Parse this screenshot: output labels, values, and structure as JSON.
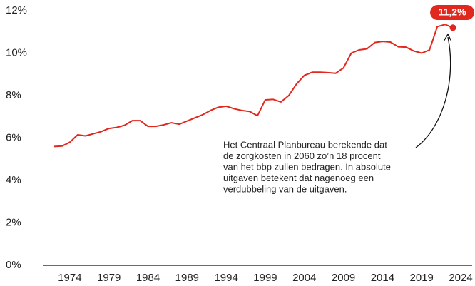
{
  "chart_data": {
    "type": "line",
    "x": [
      1972,
      1973,
      1974,
      1975,
      1976,
      1977,
      1978,
      1979,
      1980,
      1981,
      1982,
      1983,
      1984,
      1985,
      1986,
      1987,
      1988,
      1989,
      1990,
      1991,
      1992,
      1993,
      1994,
      1995,
      1996,
      1997,
      1998,
      1999,
      2000,
      2001,
      2002,
      2003,
      2004,
      2005,
      2006,
      2007,
      2008,
      2009,
      2010,
      2011,
      2012,
      2013,
      2014,
      2015,
      2016,
      2017,
      2018,
      2019,
      2020,
      2021,
      2022
    ],
    "series": [
      {
        "color": "#e0281e",
        "values": [
          5.6,
          5.62,
          5.8,
          6.15,
          6.1,
          6.2,
          6.3,
          6.45,
          6.5,
          6.6,
          6.82,
          6.82,
          6.55,
          6.55,
          6.62,
          6.72,
          6.65,
          6.8,
          6.95,
          7.1,
          7.3,
          7.45,
          7.5,
          7.38,
          7.3,
          7.25,
          7.05,
          7.8,
          7.82,
          7.7,
          8.0,
          8.55,
          8.95,
          9.1,
          9.1,
          9.08,
          9.05,
          9.3,
          10.0,
          10.15,
          10.2,
          10.5,
          10.55,
          10.52,
          10.3,
          10.28,
          10.1,
          10.0,
          10.15,
          11.25,
          11.35
        ],
        "value_labels": [
          null,
          null,
          null,
          null,
          null,
          null,
          null,
          null,
          null,
          null,
          null,
          null,
          null,
          null,
          null,
          null,
          null,
          null,
          null,
          null,
          null,
          null,
          null,
          null,
          null,
          null,
          null,
          null,
          null,
          null,
          null,
          null,
          null,
          null,
          null,
          null,
          null,
          null,
          null,
          null,
          null,
          null,
          null,
          null,
          null,
          null,
          null,
          null,
          null,
          null,
          null
        ]
      }
    ],
    "highlight": {
      "x": 2023,
      "value": 11.2,
      "label": "11,2%"
    },
    "xlim": [
      1971,
      2025
    ],
    "xticks": [
      1974,
      1979,
      1984,
      1989,
      1994,
      1999,
      2004,
      2009,
      2014,
      2019,
      2024
    ],
    "ylim": [
      0,
      12
    ],
    "yticks": [
      {
        "value": 0,
        "label": "0%"
      },
      {
        "value": 2,
        "label": "2%"
      },
      {
        "value": 4,
        "label": "4%"
      },
      {
        "value": 6,
        "label": "6%"
      },
      {
        "value": 8,
        "label": "8%"
      },
      {
        "value": 10,
        "label": "10%"
      },
      {
        "value": 12,
        "label": "12%"
      }
    ],
    "annotation": [
      "Het Centraal Planbureau berekende dat",
      "de zorgkosten in 2060 zo’n 18 procent",
      "van het bbp zullen bedragen. In absolute",
      "uitgaven betekent dat nagenoeg een",
      "verdubbeling van de uitgaven."
    ]
  }
}
